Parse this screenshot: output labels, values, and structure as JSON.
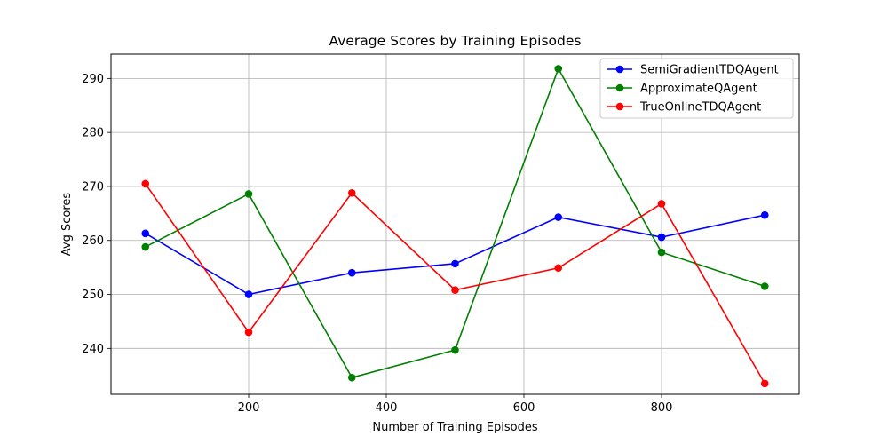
{
  "chart_data": {
    "type": "line",
    "title": "Average Scores by Training Episodes",
    "xlabel": "Number of Training Episodes",
    "ylabel": "Avg Scores",
    "x": [
      50,
      200,
      350,
      500,
      650,
      800,
      950
    ],
    "xlim": [
      0,
      1000
    ],
    "ylim": [
      231.5,
      294.5
    ],
    "xticks": [
      200,
      400,
      600,
      800
    ],
    "yticks": [
      240,
      250,
      260,
      270,
      280,
      290
    ],
    "grid": true,
    "legend_position": "top-right",
    "series": [
      {
        "name": "SemiGradientTDQAgent",
        "color": "#0000ff",
        "values": [
          261.3,
          250.0,
          254.0,
          255.7,
          264.3,
          260.6,
          264.7
        ]
      },
      {
        "name": "ApproximateQAgent",
        "color": "#008000",
        "values": [
          258.8,
          268.6,
          234.6,
          239.7,
          291.8,
          257.8,
          251.5
        ]
      },
      {
        "name": "TrueOnlineTDQAgent",
        "color": "#ff0000",
        "values": [
          270.5,
          243.0,
          268.8,
          250.8,
          254.9,
          266.8,
          233.5
        ]
      }
    ]
  }
}
